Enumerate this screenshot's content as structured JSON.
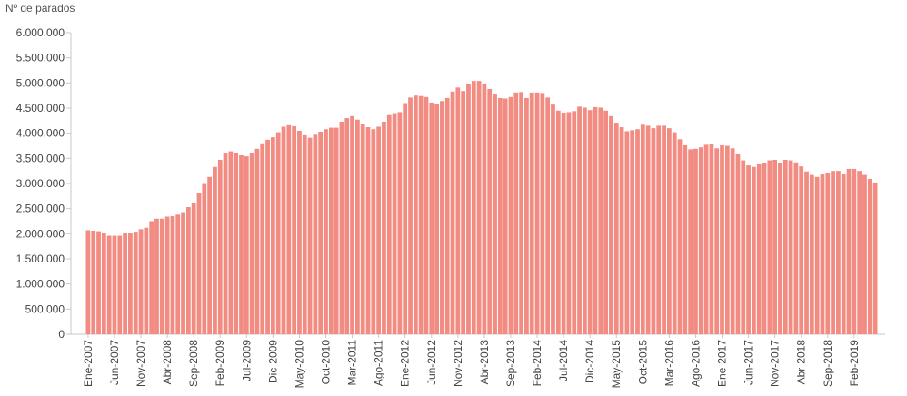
{
  "chart_data": {
    "type": "bar",
    "ylabel": "Nº de parados",
    "ylim": [
      0,
      6000000
    ],
    "yticks": [
      0,
      500000,
      1000000,
      1500000,
      2000000,
      2500000,
      3000000,
      3500000,
      4000000,
      4500000,
      5000000,
      5500000,
      6000000
    ],
    "ytick_labels": [
      "0",
      "500.000",
      "1.000.000",
      "1.500.000",
      "2.000.000",
      "2.500.000",
      "3.000.000",
      "3.500.000",
      "4.000.000",
      "4.500.000",
      "5.000.000",
      "5.500.000",
      "6.000.000"
    ],
    "xtick_labels": [
      {
        "index": 0,
        "label": "Ene-2007"
      },
      {
        "index": 5,
        "label": "Jun-2007"
      },
      {
        "index": 10,
        "label": "Nov-2007"
      },
      {
        "index": 15,
        "label": "Abr-2008"
      },
      {
        "index": 20,
        "label": "Sep-2008"
      },
      {
        "index": 25,
        "label": "Feb-2009"
      },
      {
        "index": 30,
        "label": "Jul-2009"
      },
      {
        "index": 35,
        "label": "Dic-2009"
      },
      {
        "index": 40,
        "label": "May-2010"
      },
      {
        "index": 45,
        "label": "Oct-2010"
      },
      {
        "index": 50,
        "label": "Mar-2011"
      },
      {
        "index": 55,
        "label": "Ago-2011"
      },
      {
        "index": 60,
        "label": "Ene-2012"
      },
      {
        "index": 65,
        "label": "Jun-2012"
      },
      {
        "index": 70,
        "label": "Nov-2012"
      },
      {
        "index": 75,
        "label": "Abr-2013"
      },
      {
        "index": 80,
        "label": "Sep-2013"
      },
      {
        "index": 85,
        "label": "Feb-2014"
      },
      {
        "index": 90,
        "label": "Jul-2014"
      },
      {
        "index": 95,
        "label": "Dic-2014"
      },
      {
        "index": 100,
        "label": "May-2015"
      },
      {
        "index": 105,
        "label": "Oct-2015"
      },
      {
        "index": 110,
        "label": "Mar-2016"
      },
      {
        "index": 115,
        "label": "Ago-2016"
      },
      {
        "index": 120,
        "label": "Ene-2017"
      },
      {
        "index": 125,
        "label": "Jun-2017"
      },
      {
        "index": 130,
        "label": "Nov-2017"
      },
      {
        "index": 135,
        "label": "Abr-2018"
      },
      {
        "index": 140,
        "label": "Sep-2018"
      },
      {
        "index": 145,
        "label": "Feb-2019"
      }
    ],
    "values": [
      2070000,
      2060000,
      2050000,
      2010000,
      1960000,
      1960000,
      1960000,
      2010000,
      2010000,
      2040000,
      2090000,
      2120000,
      2250000,
      2300000,
      2300000,
      2340000,
      2350000,
      2380000,
      2430000,
      2530000,
      2620000,
      2810000,
      2990000,
      3130000,
      3330000,
      3470000,
      3600000,
      3640000,
      3610000,
      3560000,
      3540000,
      3610000,
      3690000,
      3800000,
      3870000,
      3920000,
      4020000,
      4130000,
      4160000,
      4140000,
      4050000,
      3960000,
      3910000,
      3970000,
      4030000,
      4080000,
      4110000,
      4110000,
      4230000,
      4300000,
      4340000,
      4270000,
      4190000,
      4120000,
      4080000,
      4130000,
      4230000,
      4360000,
      4400000,
      4420000,
      4600000,
      4710000,
      4750000,
      4740000,
      4720000,
      4610000,
      4590000,
      4640000,
      4700000,
      4830000,
      4910000,
      4840000,
      4980000,
      5040000,
      5040000,
      4990000,
      4880000,
      4770000,
      4700000,
      4690000,
      4720000,
      4810000,
      4820000,
      4700000,
      4810000,
      4810000,
      4800000,
      4710000,
      4570000,
      4450000,
      4410000,
      4420000,
      4440000,
      4530000,
      4510000,
      4460000,
      4520000,
      4510000,
      4450000,
      4340000,
      4210000,
      4120000,
      4040000,
      4060000,
      4080000,
      4170000,
      4150000,
      4100000,
      4150000,
      4150000,
      4100000,
      4020000,
      3880000,
      3760000,
      3680000,
      3690000,
      3720000,
      3770000,
      3790000,
      3700000,
      3760000,
      3750000,
      3700000,
      3580000,
      3460000,
      3360000,
      3330000,
      3380000,
      3410000,
      3460000,
      3470000,
      3410000,
      3470000,
      3460000,
      3420000,
      3340000,
      3240000,
      3170000,
      3130000,
      3180000,
      3210000,
      3250000,
      3250000,
      3180000,
      3290000,
      3290000,
      3250000,
      3170000,
      3090000,
      3020000
    ]
  }
}
